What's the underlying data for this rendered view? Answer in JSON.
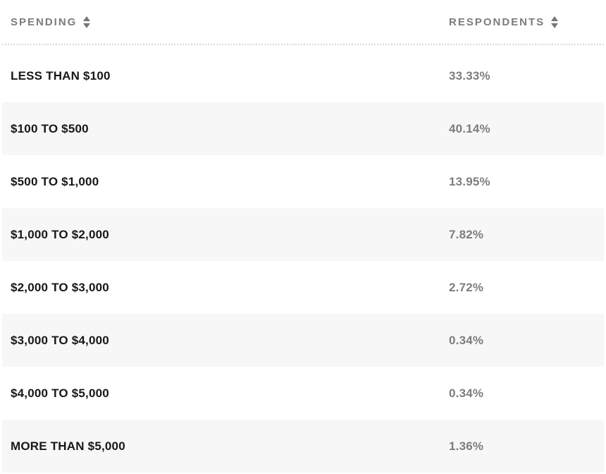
{
  "table": {
    "columns": [
      {
        "label": "SPENDING"
      },
      {
        "label": "RESPONDENTS"
      }
    ],
    "rows": [
      {
        "spending": "LESS THAN $100",
        "respondents": "33.33%"
      },
      {
        "spending": "$100 TO $500",
        "respondents": "40.14%"
      },
      {
        "spending": "$500 TO $1,000",
        "respondents": "13.95%"
      },
      {
        "spending": "$1,000 TO $2,000",
        "respondents": "7.82%"
      },
      {
        "spending": "$2,000 TO $3,000",
        "respondents": "2.72%"
      },
      {
        "spending": "$3,000 TO $4,000",
        "respondents": "0.34%"
      },
      {
        "spending": "$4,000 TO $5,000",
        "respondents": "0.34%"
      },
      {
        "spending": "MORE THAN $5,000",
        "respondents": "1.36%"
      }
    ]
  },
  "chart_data": {
    "type": "table",
    "title": "",
    "columns": [
      "SPENDING",
      "RESPONDENTS"
    ],
    "categories": [
      "LESS THAN $100",
      "$100 TO $500",
      "$500 TO $1,000",
      "$1,000 TO $2,000",
      "$2,000 TO $3,000",
      "$3,000 TO $4,000",
      "$4,000 TO $5,000",
      "MORE THAN $5,000"
    ],
    "values": [
      33.33,
      40.14,
      13.95,
      7.82,
      2.72,
      0.34,
      0.34,
      1.36
    ],
    "value_unit": "%"
  },
  "colors": {
    "row_stripe": "#f7f7f7",
    "header_text": "#797c7e",
    "label_text": "#15181b",
    "value_text": "#7b7e81",
    "divider": "#d8d8d8"
  }
}
